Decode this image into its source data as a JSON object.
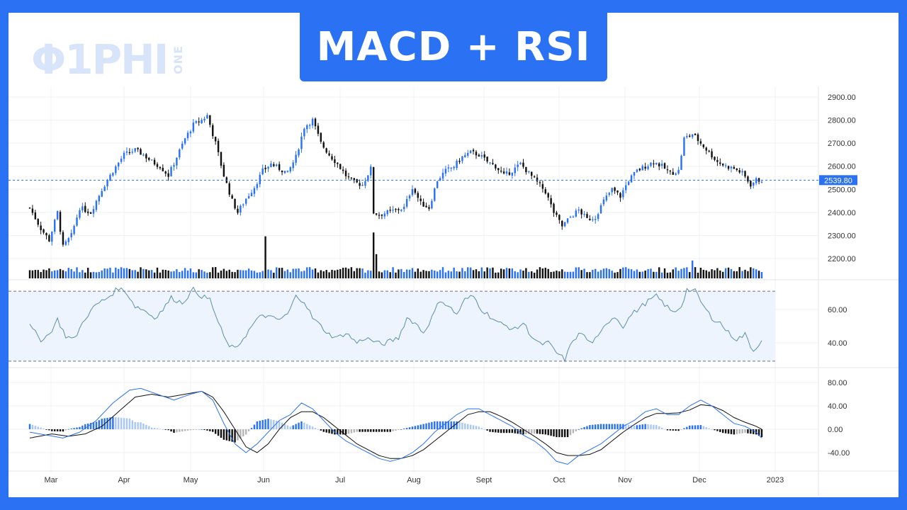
{
  "banner": {
    "title": "MACD + RSI"
  },
  "logo": {
    "main": "Φ1PHI",
    "side": "ONE"
  },
  "colors": {
    "accent": "#2a72f3",
    "up": "#2a72f3",
    "down": "#111111",
    "rsi_line": "#5b8fa8",
    "macd_line": "#2a72f3",
    "signal_line": "#111111",
    "hist_up_strong": "#2a72f3",
    "hist_up_weak": "#a9c7f5",
    "hist_down_strong": "#111111",
    "hist_down_weak": "#b5b5b5"
  },
  "chart_data": [
    {
      "type": "candlestick",
      "panel": "price",
      "x_ticks": [
        "Mar",
        "Apr",
        "May",
        "Jun",
        "Jul",
        "Aug",
        "Sept",
        "Oct",
        "Nov",
        "Dec",
        "2023"
      ],
      "y_ticks": [
        "2900.00",
        "2800.00",
        "2700.00",
        "2600.00",
        "2500.00",
        "2400.00",
        "2300.00",
        "2200.00"
      ],
      "ylim": [
        2150,
        2935
      ],
      "last_price_label": "2539.80",
      "last_price": 2539.8,
      "close_anchors": [
        [
          0,
          2420
        ],
        [
          4,
          2330
        ],
        [
          7,
          2280
        ],
        [
          10,
          2400
        ],
        [
          12,
          2250
        ],
        [
          15,
          2300
        ],
        [
          18,
          2420
        ],
        [
          22,
          2400
        ],
        [
          26,
          2500
        ],
        [
          30,
          2580
        ],
        [
          34,
          2650
        ],
        [
          38,
          2670
        ],
        [
          41,
          2650
        ],
        [
          44,
          2620
        ],
        [
          47,
          2600
        ],
        [
          50,
          2560
        ],
        [
          53,
          2640
        ],
        [
          56,
          2720
        ],
        [
          59,
          2780
        ],
        [
          62,
          2800
        ],
        [
          64,
          2820
        ],
        [
          67,
          2700
        ],
        [
          70,
          2560
        ],
        [
          73,
          2450
        ],
        [
          75,
          2400
        ],
        [
          78,
          2460
        ],
        [
          81,
          2510
        ],
        [
          84,
          2580
        ],
        [
          87,
          2610
        ],
        [
          90,
          2590
        ],
        [
          93,
          2570
        ],
        [
          96,
          2640
        ],
        [
          99,
          2770
        ],
        [
          102,
          2800
        ],
        [
          105,
          2700
        ],
        [
          108,
          2650
        ],
        [
          111,
          2610
        ],
        [
          114,
          2560
        ],
        [
          117,
          2530
        ],
        [
          120,
          2520
        ],
        [
          123,
          2590
        ],
        [
          124,
          2400
        ],
        [
          126,
          2390
        ],
        [
          129,
          2400
        ],
        [
          132,
          2410
        ],
        [
          135,
          2420
        ],
        [
          138,
          2510
        ],
        [
          141,
          2440
        ],
        [
          144,
          2420
        ],
        [
          147,
          2540
        ],
        [
          150,
          2580
        ],
        [
          153,
          2600
        ],
        [
          156,
          2640
        ],
        [
          159,
          2660
        ],
        [
          162,
          2650
        ],
        [
          165,
          2620
        ],
        [
          168,
          2600
        ],
        [
          171,
          2560
        ],
        [
          174,
          2580
        ],
        [
          177,
          2610
        ],
        [
          180,
          2570
        ],
        [
          183,
          2530
        ],
        [
          186,
          2490
        ],
        [
          189,
          2400
        ],
        [
          192,
          2340
        ],
        [
          195,
          2380
        ],
        [
          198,
          2410
        ],
        [
          201,
          2370
        ],
        [
          204,
          2380
        ],
        [
          207,
          2450
        ],
        [
          210,
          2500
        ],
        [
          213,
          2470
        ],
        [
          216,
          2540
        ],
        [
          219,
          2580
        ],
        [
          222,
          2600
        ],
        [
          225,
          2620
        ],
        [
          228,
          2600
        ],
        [
          231,
          2570
        ],
        [
          234,
          2580
        ],
        [
          236,
          2720
        ],
        [
          239,
          2740
        ],
        [
          242,
          2700
        ],
        [
          245,
          2660
        ],
        [
          248,
          2620
        ],
        [
          251,
          2600
        ],
        [
          254,
          2590
        ],
        [
          257,
          2570
        ],
        [
          260,
          2520
        ],
        [
          262,
          2540
        ]
      ],
      "volume_spikes": [
        [
          85,
          3.3
        ],
        [
          124,
          3.6
        ],
        [
          125,
          1.9
        ],
        [
          239,
          1.4
        ]
      ]
    },
    {
      "type": "line",
      "panel": "rsi",
      "name": "RSI",
      "y_ticks": [
        "60.00",
        "40.00"
      ],
      "ylim": [
        20,
        80
      ],
      "band": [
        29,
        71
      ],
      "anchors": [
        [
          0,
          50
        ],
        [
          4,
          42
        ],
        [
          7,
          45
        ],
        [
          10,
          54
        ],
        [
          13,
          44
        ],
        [
          16,
          42
        ],
        [
          20,
          55
        ],
        [
          24,
          63
        ],
        [
          28,
          67
        ],
        [
          32,
          73
        ],
        [
          35,
          70
        ],
        [
          38,
          62
        ],
        [
          41,
          60
        ],
        [
          45,
          55
        ],
        [
          48,
          60
        ],
        [
          51,
          67
        ],
        [
          55,
          64
        ],
        [
          59,
          72
        ],
        [
          62,
          68
        ],
        [
          65,
          66
        ],
        [
          68,
          52
        ],
        [
          71,
          40
        ],
        [
          74,
          36
        ],
        [
          78,
          45
        ],
        [
          81,
          52
        ],
        [
          84,
          57
        ],
        [
          87,
          55
        ],
        [
          90,
          54
        ],
        [
          93,
          57
        ],
        [
          96,
          68
        ],
        [
          99,
          65
        ],
        [
          102,
          55
        ],
        [
          105,
          50
        ],
        [
          108,
          45
        ],
        [
          111,
          43
        ],
        [
          114,
          46
        ],
        [
          118,
          40
        ],
        [
          121,
          43
        ],
        [
          124,
          41
        ],
        [
          127,
          39
        ],
        [
          130,
          41
        ],
        [
          133,
          43
        ],
        [
          136,
          55
        ],
        [
          139,
          52
        ],
        [
          142,
          46
        ],
        [
          145,
          55
        ],
        [
          148,
          66
        ],
        [
          151,
          62
        ],
        [
          154,
          57
        ],
        [
          157,
          66
        ],
        [
          160,
          68
        ],
        [
          163,
          60
        ],
        [
          166,
          56
        ],
        [
          169,
          52
        ],
        [
          172,
          50
        ],
        [
          175,
          48
        ],
        [
          178,
          52
        ],
        [
          181,
          44
        ],
        [
          184,
          39
        ],
        [
          187,
          40
        ],
        [
          190,
          34
        ],
        [
          193,
          30
        ],
        [
          196,
          42
        ],
        [
          199,
          46
        ],
        [
          202,
          40
        ],
        [
          205,
          43
        ],
        [
          208,
          52
        ],
        [
          211,
          56
        ],
        [
          214,
          50
        ],
        [
          217,
          57
        ],
        [
          220,
          61
        ],
        [
          223,
          65
        ],
        [
          226,
          68
        ],
        [
          229,
          63
        ],
        [
          232,
          58
        ],
        [
          235,
          62
        ],
        [
          237,
          72
        ],
        [
          240,
          71
        ],
        [
          243,
          62
        ],
        [
          246,
          55
        ],
        [
          249,
          52
        ],
        [
          252,
          46
        ],
        [
          255,
          42
        ],
        [
          258,
          45
        ],
        [
          261,
          35
        ],
        [
          264,
          42
        ]
      ]
    },
    {
      "type": "macd",
      "panel": "macd",
      "y_ticks": [
        "80.00",
        "40.00",
        "0.00",
        "-40.00"
      ],
      "ylim": [
        -70,
        90
      ],
      "macd_anchors": [
        [
          0,
          -5
        ],
        [
          6,
          -10
        ],
        [
          12,
          -15
        ],
        [
          18,
          -5
        ],
        [
          24,
          15
        ],
        [
          30,
          45
        ],
        [
          36,
          67
        ],
        [
          40,
          70
        ],
        [
          46,
          60
        ],
        [
          52,
          50
        ],
        [
          58,
          60
        ],
        [
          62,
          65
        ],
        [
          66,
          50
        ],
        [
          70,
          10
        ],
        [
          74,
          -25
        ],
        [
          78,
          -40
        ],
        [
          82,
          -25
        ],
        [
          86,
          -5
        ],
        [
          90,
          15
        ],
        [
          94,
          25
        ],
        [
          98,
          45
        ],
        [
          102,
          35
        ],
        [
          106,
          15
        ],
        [
          110,
          -5
        ],
        [
          114,
          -20
        ],
        [
          118,
          -30
        ],
        [
          122,
          -40
        ],
        [
          126,
          -50
        ],
        [
          130,
          -55
        ],
        [
          134,
          -50
        ],
        [
          138,
          -40
        ],
        [
          142,
          -25
        ],
        [
          146,
          -5
        ],
        [
          150,
          10
        ],
        [
          154,
          25
        ],
        [
          158,
          35
        ],
        [
          162,
          35
        ],
        [
          166,
          25
        ],
        [
          170,
          15
        ],
        [
          174,
          5
        ],
        [
          178,
          -10
        ],
        [
          182,
          -20
        ],
        [
          186,
          -35
        ],
        [
          190,
          -55
        ],
        [
          194,
          -60
        ],
        [
          198,
          -45
        ],
        [
          202,
          -35
        ],
        [
          206,
          -25
        ],
        [
          210,
          -10
        ],
        [
          214,
          5
        ],
        [
          218,
          15
        ],
        [
          222,
          30
        ],
        [
          226,
          35
        ],
        [
          230,
          25
        ],
        [
          234,
          25
        ],
        [
          238,
          40
        ],
        [
          242,
          50
        ],
        [
          246,
          40
        ],
        [
          250,
          25
        ],
        [
          254,
          10
        ],
        [
          258,
          5
        ],
        [
          262,
          -5
        ],
        [
          264,
          -15
        ]
      ],
      "signal_anchors": [
        [
          0,
          -15
        ],
        [
          8,
          -8
        ],
        [
          14,
          -12
        ],
        [
          20,
          -8
        ],
        [
          26,
          5
        ],
        [
          32,
          30
        ],
        [
          38,
          55
        ],
        [
          44,
          60
        ],
        [
          50,
          55
        ],
        [
          56,
          60
        ],
        [
          62,
          65
        ],
        [
          66,
          55
        ],
        [
          70,
          30
        ],
        [
          74,
          0
        ],
        [
          78,
          -30
        ],
        [
          82,
          -40
        ],
        [
          86,
          -25
        ],
        [
          90,
          0
        ],
        [
          94,
          20
        ],
        [
          98,
          30
        ],
        [
          102,
          30
        ],
        [
          106,
          20
        ],
        [
          110,
          5
        ],
        [
          114,
          -10
        ],
        [
          118,
          -25
        ],
        [
          122,
          -35
        ],
        [
          126,
          -45
        ],
        [
          130,
          -50
        ],
        [
          134,
          -50
        ],
        [
          138,
          -45
        ],
        [
          142,
          -35
        ],
        [
          146,
          -20
        ],
        [
          150,
          -5
        ],
        [
          154,
          10
        ],
        [
          158,
          25
        ],
        [
          162,
          30
        ],
        [
          166,
          30
        ],
        [
          170,
          22
        ],
        [
          174,
          12
        ],
        [
          178,
          0
        ],
        [
          182,
          -12
        ],
        [
          186,
          -25
        ],
        [
          190,
          -40
        ],
        [
          194,
          -45
        ],
        [
          198,
          -45
        ],
        [
          202,
          -43
        ],
        [
          206,
          -35
        ],
        [
          210,
          -20
        ],
        [
          214,
          -5
        ],
        [
          218,
          8
        ],
        [
          222,
          20
        ],
        [
          226,
          27
        ],
        [
          230,
          27
        ],
        [
          234,
          28
        ],
        [
          238,
          33
        ],
        [
          242,
          42
        ],
        [
          246,
          40
        ],
        [
          250,
          32
        ],
        [
          254,
          20
        ],
        [
          258,
          12
        ],
        [
          262,
          5
        ],
        [
          264,
          0
        ]
      ]
    }
  ]
}
